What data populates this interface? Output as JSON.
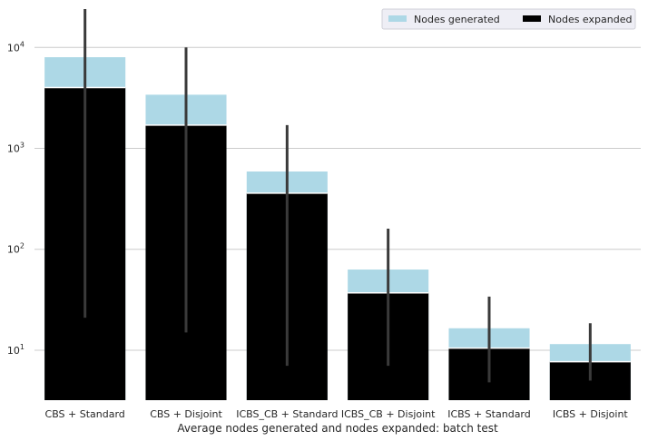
{
  "chart_data": {
    "type": "bar",
    "title": "",
    "xlabel": "Average nodes generated and nodes expanded: batch test",
    "ylabel": "",
    "yscale": "log",
    "ylim": [
      3.2,
      25000
    ],
    "yticks": [
      {
        "value": 10,
        "base": "10",
        "exp": "1"
      },
      {
        "value": 100,
        "base": "10",
        "exp": "2"
      },
      {
        "value": 1000,
        "base": "10",
        "exp": "3"
      },
      {
        "value": 10000,
        "base": "10",
        "exp": "4"
      }
    ],
    "grid": "horizontal",
    "legend_position": "top-right",
    "categories": [
      "CBS + Standard",
      "CBS + Disjoint",
      "ICBS_CB + Standard",
      "ICBS_CB + Disjoint",
      "ICBS + Standard",
      "ICBS + Disjoint"
    ],
    "series": [
      {
        "name": "Nodes generated",
        "color": "#add8e6",
        "values": [
          8000,
          3400,
          590,
          63,
          16.5,
          11.5
        ]
      },
      {
        "name": "Nodes expanded",
        "color": "#000000",
        "values": [
          4000,
          1700,
          360,
          37,
          10.5,
          7.7
        ]
      }
    ],
    "error_bars": [
      {
        "low": 21,
        "high": 24000
      },
      {
        "low": 15,
        "high": 10000
      },
      {
        "low": 7,
        "high": 1700
      },
      {
        "low": 7,
        "high": 160
      },
      {
        "low": 4.8,
        "high": 34
      },
      {
        "low": 5,
        "high": 18.5
      }
    ],
    "error_bar_color": "#3a3a3a"
  }
}
